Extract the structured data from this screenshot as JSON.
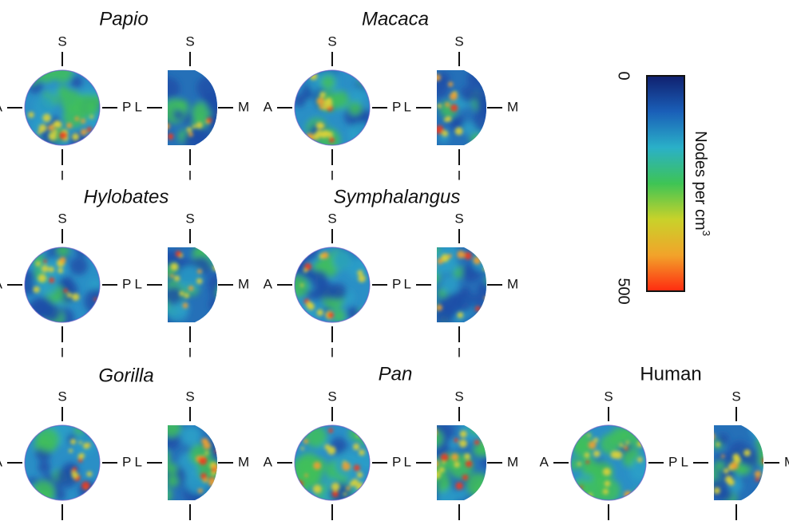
{
  "colorbar": {
    "label_base": "Nodes per cm",
    "label_exp": "3",
    "min_label": "0",
    "max_label": "500",
    "range": [
      0,
      500
    ],
    "stops": [
      "#10206e",
      "#1a5fb8",
      "#2ab0c8",
      "#3ec455",
      "#c9d22a",
      "#f2a32a",
      "#ff2a10"
    ]
  },
  "axis_labels": {
    "superior": "S",
    "inferior": "I",
    "anterior": "A",
    "posterior": "P",
    "lateral": "L",
    "medial": "M"
  },
  "panels": [
    {
      "title": "Papio",
      "italic": true,
      "lateral_density": 0.45,
      "medial_density": 0.25,
      "hotspots": "inferior"
    },
    {
      "title": "Macaca",
      "italic": true,
      "lateral_density": 0.4,
      "medial_density": 0.2,
      "hotspots": "lateral"
    },
    {
      "title": "Hylobates",
      "italic": true,
      "lateral_density": 0.3,
      "medial_density": 0.3,
      "hotspots": "scattered"
    },
    {
      "title": "Symphalangus",
      "italic": true,
      "lateral_density": 0.25,
      "medial_density": 0.28,
      "hotspots": "rim"
    },
    {
      "title": "Gorilla",
      "italic": true,
      "lateral_density": 0.3,
      "medial_density": 0.35,
      "hotspots": "medial"
    },
    {
      "title": "Pan",
      "italic": true,
      "lateral_density": 0.55,
      "medial_density": 0.55,
      "hotspots": "diffuse"
    },
    {
      "title": "Human",
      "italic": false,
      "lateral_density": 0.62,
      "medial_density": 0.45,
      "hotspots": "diffuse"
    }
  ]
}
